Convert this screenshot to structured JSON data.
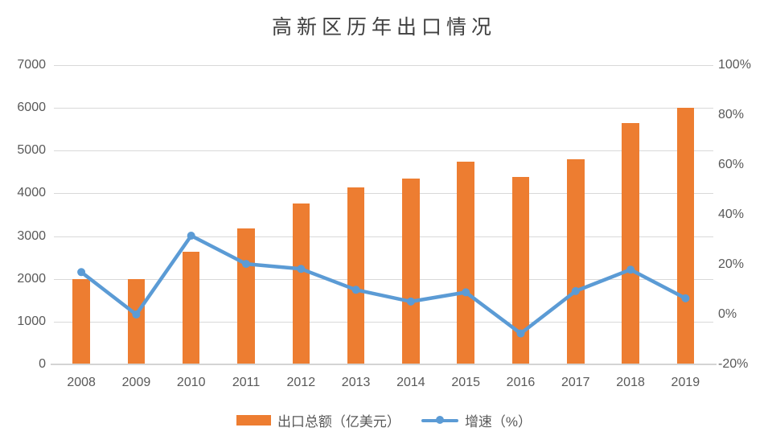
{
  "title": "高新区历年出口情况",
  "colors": {
    "bar": "#ed7d31",
    "line": "#5b9bd5",
    "gridline": "#d9d9d9",
    "axis_line": "#d4d4d4",
    "tick_text": "#595959",
    "title_text": "#404040",
    "background": "#ffffff"
  },
  "chart_data": {
    "type": "bar",
    "subtype": "combo-bar-line-dual-axis",
    "title": "高新区历年出口情况",
    "categories": [
      "2008",
      "2009",
      "2010",
      "2011",
      "2012",
      "2013",
      "2014",
      "2015",
      "2016",
      "2017",
      "2018",
      "2019"
    ],
    "series": [
      {
        "name": "出口总额（亿美元）",
        "type": "bar",
        "axis": "left",
        "color": "#ed7d31",
        "values": [
          2000,
          2000,
          2640,
          3180,
          3760,
          4140,
          4350,
          4740,
          4380,
          4790,
          5650,
          6010
        ]
      },
      {
        "name": "增速（%）",
        "type": "line",
        "axis": "right",
        "color": "#5b9bd5",
        "values": [
          17,
          0,
          31.6,
          20.3,
          18.3,
          9.9,
          5.2,
          8.9,
          -7.6,
          9.4,
          18,
          6.5
        ]
      }
    ],
    "left_axis": {
      "min": 0,
      "max": 7000,
      "step": 1000,
      "tick_labels": [
        "0",
        "1000",
        "2000",
        "3000",
        "4000",
        "5000",
        "6000",
        "7000"
      ]
    },
    "right_axis": {
      "min": -20,
      "max": 100,
      "step": 20,
      "tick_labels": [
        "-20%",
        "0%",
        "20%",
        "40%",
        "60%",
        "80%",
        "100%"
      ]
    },
    "grid": "horizontal-only",
    "legend_position": "bottom-center"
  }
}
